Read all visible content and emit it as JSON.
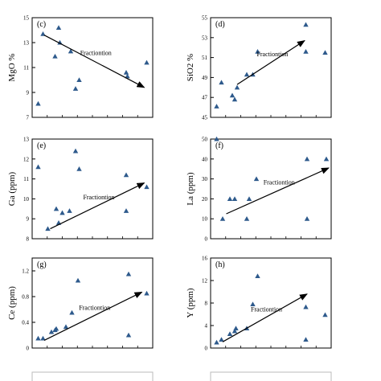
{
  "colors": {
    "marker": "#2e5a8c",
    "axis": "#000000",
    "arrow": "#000000"
  },
  "chart_data": [
    {
      "type": "scatter",
      "panel": "(c)",
      "ylabel": "MgO %",
      "ylim": [
        7,
        15
      ],
      "yticks": [
        7,
        9,
        11,
        13,
        15
      ],
      "xlim": [
        0,
        1
      ],
      "points": [
        [
          0.05,
          8.1
        ],
        [
          0.09,
          13.7
        ],
        [
          0.19,
          11.9
        ],
        [
          0.22,
          14.2
        ],
        [
          0.23,
          13.0
        ],
        [
          0.32,
          12.3
        ],
        [
          0.36,
          9.3
        ],
        [
          0.39,
          10.0
        ],
        [
          0.78,
          10.6
        ],
        [
          0.79,
          10.3
        ],
        [
          0.95,
          11.4
        ]
      ],
      "arrow": {
        "from": [
          0.1,
          13.6
        ],
        "to": [
          0.93,
          9.4
        ],
        "label": "Fractiontion"
      }
    },
    {
      "type": "scatter",
      "panel": "(d)",
      "ylabel": "SiO2 %",
      "ylim": [
        45,
        55
      ],
      "yticks": [
        45,
        47,
        49,
        51,
        53,
        55
      ],
      "xlim": [
        0,
        1
      ],
      "points": [
        [
          0.05,
          46.1
        ],
        [
          0.09,
          48.5
        ],
        [
          0.18,
          47.2
        ],
        [
          0.2,
          46.8
        ],
        [
          0.22,
          48.0
        ],
        [
          0.3,
          49.3
        ],
        [
          0.35,
          49.3
        ],
        [
          0.39,
          51.6
        ],
        [
          0.79,
          54.3
        ],
        [
          0.79,
          51.6
        ],
        [
          0.95,
          51.5
        ]
      ],
      "arrow": {
        "from": [
          0.22,
          48.3
        ],
        "to": [
          0.78,
          52.7
        ],
        "label": "Fractiontion"
      }
    },
    {
      "type": "scatter",
      "panel": "(e)",
      "ylabel": "Ga (ppm)",
      "ylim": [
        8,
        13
      ],
      "yticks": [
        8,
        9,
        10,
        11,
        12,
        13
      ],
      "xlim": [
        0,
        1
      ],
      "points": [
        [
          0.05,
          11.6
        ],
        [
          0.13,
          8.5
        ],
        [
          0.2,
          9.5
        ],
        [
          0.22,
          8.8
        ],
        [
          0.25,
          9.3
        ],
        [
          0.31,
          9.4
        ],
        [
          0.36,
          12.4
        ],
        [
          0.39,
          11.5
        ],
        [
          0.78,
          11.2
        ],
        [
          0.78,
          9.4
        ],
        [
          0.95,
          10.6
        ]
      ],
      "arrow": {
        "from": [
          0.15,
          8.5
        ],
        "to": [
          0.93,
          10.8
        ],
        "label": "Fractiontion"
      }
    },
    {
      "type": "scatter",
      "panel": "(f)",
      "ylabel": "La (ppm)",
      "ylim": [
        0,
        50
      ],
      "yticks": [
        0,
        10,
        20,
        30,
        40,
        50
      ],
      "xlim": [
        0,
        1
      ],
      "points": [
        [
          0.05,
          50
        ],
        [
          0.1,
          10
        ],
        [
          0.16,
          20
        ],
        [
          0.2,
          20
        ],
        [
          0.3,
          10
        ],
        [
          0.32,
          20
        ],
        [
          0.38,
          30
        ],
        [
          0.8,
          40
        ],
        [
          0.8,
          10
        ],
        [
          0.96,
          40
        ]
      ],
      "arrow": {
        "from": [
          0.13,
          12.5
        ],
        "to": [
          0.98,
          35.5
        ],
        "label": "Fractiontion"
      }
    },
    {
      "type": "scatter",
      "panel": "(g)",
      "ylabel": "Ce (ppm)",
      "ylim": [
        0,
        1.4
      ],
      "yticks": [
        0,
        0.4,
        0.8,
        1.2
      ],
      "xlim": [
        0,
        1
      ],
      "points": [
        [
          0.05,
          0.15
        ],
        [
          0.09,
          0.15
        ],
        [
          0.16,
          0.25
        ],
        [
          0.19,
          0.28
        ],
        [
          0.2,
          0.3
        ],
        [
          0.28,
          0.33
        ],
        [
          0.33,
          0.55
        ],
        [
          0.38,
          1.05
        ],
        [
          0.8,
          1.15
        ],
        [
          0.8,
          0.2
        ],
        [
          0.95,
          0.85
        ]
      ],
      "arrow": {
        "from": [
          0.1,
          0.12
        ],
        "to": [
          0.91,
          0.87
        ],
        "label": "Fractiontion"
      }
    },
    {
      "type": "scatter",
      "panel": "(h)",
      "ylabel": "Y (ppm)",
      "ylim": [
        0,
        16
      ],
      "yticks": [
        0,
        4,
        8,
        12,
        16
      ],
      "xlim": [
        0,
        1
      ],
      "points": [
        [
          0.05,
          1
        ],
        [
          0.09,
          1.5
        ],
        [
          0.16,
          2.5
        ],
        [
          0.2,
          3
        ],
        [
          0.21,
          3.5
        ],
        [
          0.3,
          3.5
        ],
        [
          0.35,
          7.8
        ],
        [
          0.39,
          12.8
        ],
        [
          0.79,
          7.3
        ],
        [
          0.79,
          1.5
        ],
        [
          0.95,
          5.9
        ]
      ],
      "arrow": {
        "from": [
          0.1,
          1.1
        ],
        "to": [
          0.8,
          9.6
        ],
        "label": "Fractiontion"
      }
    }
  ]
}
